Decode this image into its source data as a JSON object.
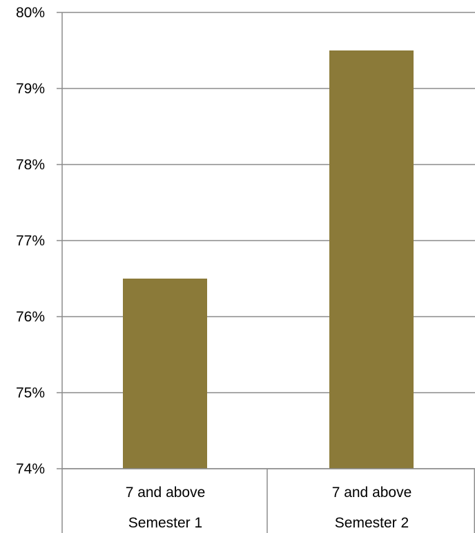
{
  "chart_data": {
    "type": "bar",
    "categories": [
      {
        "level1": "7 and above",
        "level2": "Semester 1"
      },
      {
        "level1": "7 and above",
        "level2": "Semester 2"
      }
    ],
    "values": [
      76.5,
      79.5
    ],
    "unit": "%",
    "ylim": [
      74,
      80
    ],
    "yticks": [
      "74%",
      "75%",
      "76%",
      "77%",
      "78%",
      "79%",
      "80%"
    ],
    "grid": true,
    "legend": "none",
    "title": "",
    "xlabel": "",
    "ylabel": "",
    "colors": {
      "bar": "#8b7a39",
      "grid": "#8c8c8c"
    }
  }
}
